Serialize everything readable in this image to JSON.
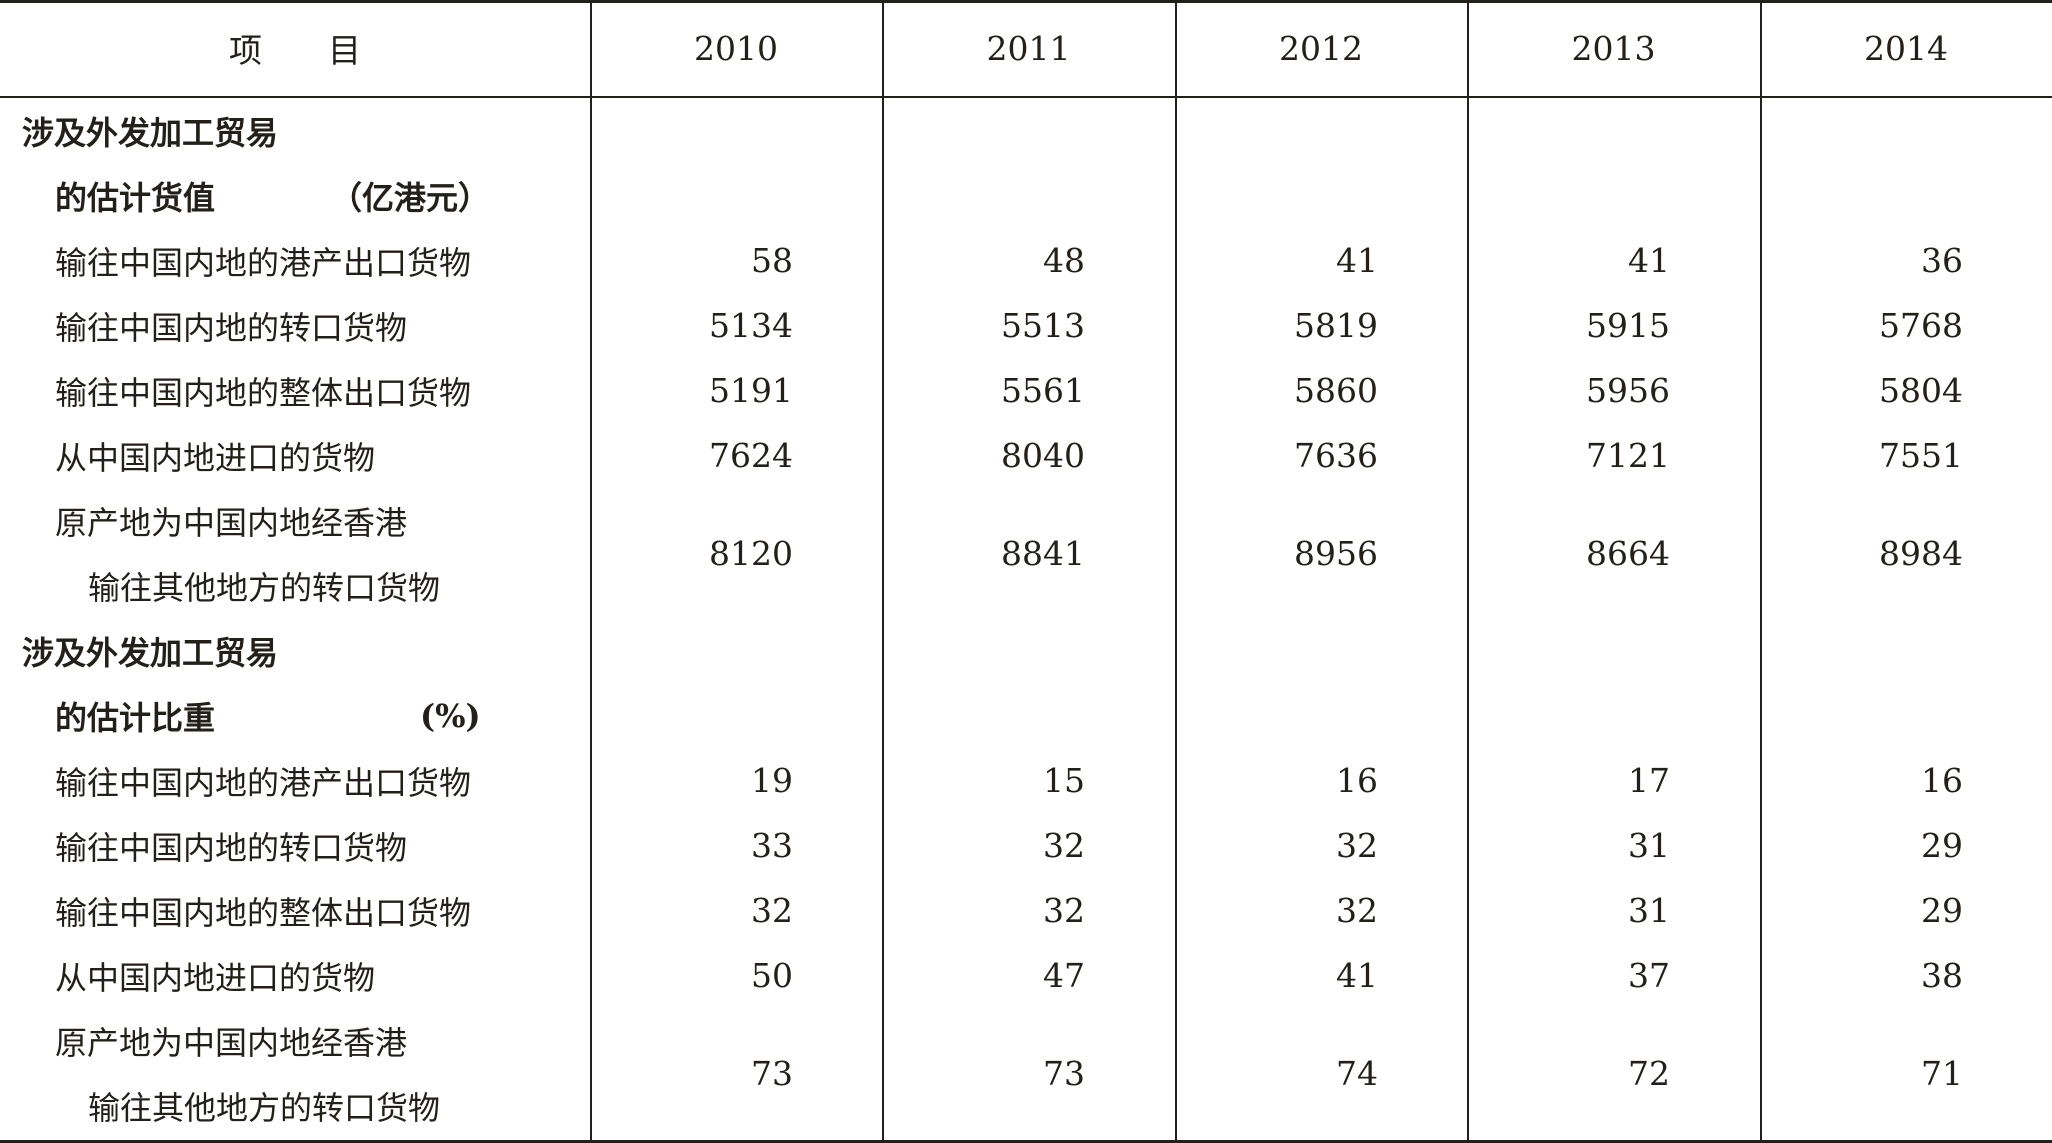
{
  "table": {
    "header": [
      "项　　目",
      "2010",
      "2011",
      "2012",
      "2013",
      "2014"
    ],
    "sections": [
      {
        "title_line1": "涉及外发加工贸易",
        "title_line2": "的估计货值",
        "unit": "（亿港元）",
        "rows": [
          {
            "label": [
              "输往中国内地的港产出口货物"
            ],
            "values": [
              "58",
              "48",
              "41",
              "41",
              "36"
            ]
          },
          {
            "label": [
              "输往中国内地的转口货物"
            ],
            "values": [
              "5134",
              "5513",
              "5819",
              "5915",
              "5768"
            ]
          },
          {
            "label": [
              "输往中国内地的整体出口货物"
            ],
            "values": [
              "5191",
              "5561",
              "5860",
              "5956",
              "5804"
            ]
          },
          {
            "label": [
              "从中国内地进口的货物"
            ],
            "values": [
              "7624",
              "8040",
              "7636",
              "7121",
              "7551"
            ]
          },
          {
            "label": [
              "原产地为中国内地经香港",
              "输往其他地方的转口货物"
            ],
            "values": [
              "8120",
              "8841",
              "8956",
              "8664",
              "8984"
            ]
          }
        ]
      },
      {
        "title_line1": "涉及外发加工贸易",
        "title_line2": "的估计比重",
        "unit": "(%)",
        "rows": [
          {
            "label": [
              "输往中国内地的港产出口货物"
            ],
            "values": [
              "19",
              "15",
              "16",
              "17",
              "16"
            ]
          },
          {
            "label": [
              "输往中国内地的转口货物"
            ],
            "values": [
              "33",
              "32",
              "32",
              "31",
              "29"
            ]
          },
          {
            "label": [
              "输往中国内地的整体出口货物"
            ],
            "values": [
              "32",
              "32",
              "32",
              "31",
              "29"
            ]
          },
          {
            "label": [
              "从中国内地进口的货物"
            ],
            "values": [
              "50",
              "47",
              "41",
              "37",
              "38"
            ]
          },
          {
            "label": [
              "原产地为中国内地经香港",
              "输往其他地方的转口货物"
            ],
            "values": [
              "73",
              "73",
              "74",
              "72",
              "71"
            ]
          }
        ]
      }
    ]
  }
}
